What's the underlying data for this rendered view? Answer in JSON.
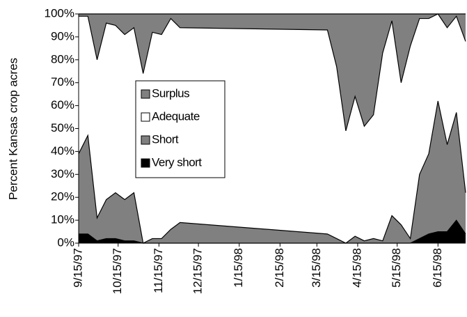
{
  "chart_data": {
    "type": "stacked-area",
    "y_label": "Percent Kansas crop acres",
    "x": [
      "9/15/97",
      "9/22/97",
      "9/29/97",
      "10/6/97",
      "10/13/97",
      "10/20/97",
      "10/27/97",
      "11/3/97",
      "11/10/97",
      "11/17/97",
      "11/24/97",
      "12/1/97",
      "3/23/98",
      "3/30/98",
      "4/6/98",
      "4/13/98",
      "4/20/98",
      "4/27/98",
      "5/4/98",
      "5/11/98",
      "5/18/98",
      "5/25/98",
      "6/1/98",
      "6/8/98",
      "6/15/98",
      "6/22/98",
      "6/29/98",
      "7/6/98"
    ],
    "series": [
      {
        "name": "Very short",
        "color": "#000000",
        "values": [
          4,
          4,
          1,
          2,
          2,
          1,
          1,
          0,
          0,
          0,
          0,
          0,
          0,
          0,
          0,
          0,
          0,
          0,
          0,
          0,
          0,
          0,
          2,
          4,
          5,
          5,
          10,
          4
        ]
      },
      {
        "name": "Short",
        "color": "#808080",
        "values": [
          35,
          43,
          10,
          17,
          20,
          18,
          21,
          0,
          2,
          2,
          6,
          9,
          4,
          2,
          0,
          3,
          1,
          2,
          1,
          12,
          8,
          2,
          28,
          35,
          57,
          38,
          47,
          18
        ]
      },
      {
        "name": "Adequate",
        "color": "#ffffff",
        "values": [
          60,
          52,
          69,
          77,
          73,
          72,
          72,
          74,
          90,
          89,
          92,
          85,
          89,
          75,
          49,
          61,
          50,
          54,
          82,
          85,
          62,
          84,
          68,
          59,
          38,
          51,
          42,
          66
        ]
      },
      {
        "name": "Surplus",
        "color": "#808080",
        "values": [
          1,
          1,
          20,
          4,
          5,
          9,
          6,
          26,
          8,
          9,
          2,
          6,
          7,
          23,
          51,
          36,
          49,
          44,
          17,
          3,
          30,
          14,
          2,
          2,
          0,
          6,
          1,
          12
        ]
      }
    ],
    "xlim": [
      "9/15/97",
      "7/6/98"
    ],
    "xticks": [
      "9/15/97",
      "10/15/97",
      "11/15/97",
      "12/15/97",
      "1/15/98",
      "2/15/98",
      "3/15/98",
      "4/15/98",
      "5/15/98",
      "6/15/98"
    ],
    "ylim": [
      0,
      100
    ],
    "yticks": [
      {
        "value": 0,
        "label": "0%"
      },
      {
        "value": 10,
        "label": "10%"
      },
      {
        "value": 20,
        "label": "20%"
      },
      {
        "value": 30,
        "label": "30%"
      },
      {
        "value": 40,
        "label": "40%"
      },
      {
        "value": 50,
        "label": "50%"
      },
      {
        "value": 60,
        "label": "60%"
      },
      {
        "value": 70,
        "label": "70%"
      },
      {
        "value": 80,
        "label": "80%"
      },
      {
        "value": 90,
        "label": "90%"
      },
      {
        "value": 100,
        "label": "100%"
      }
    ]
  }
}
